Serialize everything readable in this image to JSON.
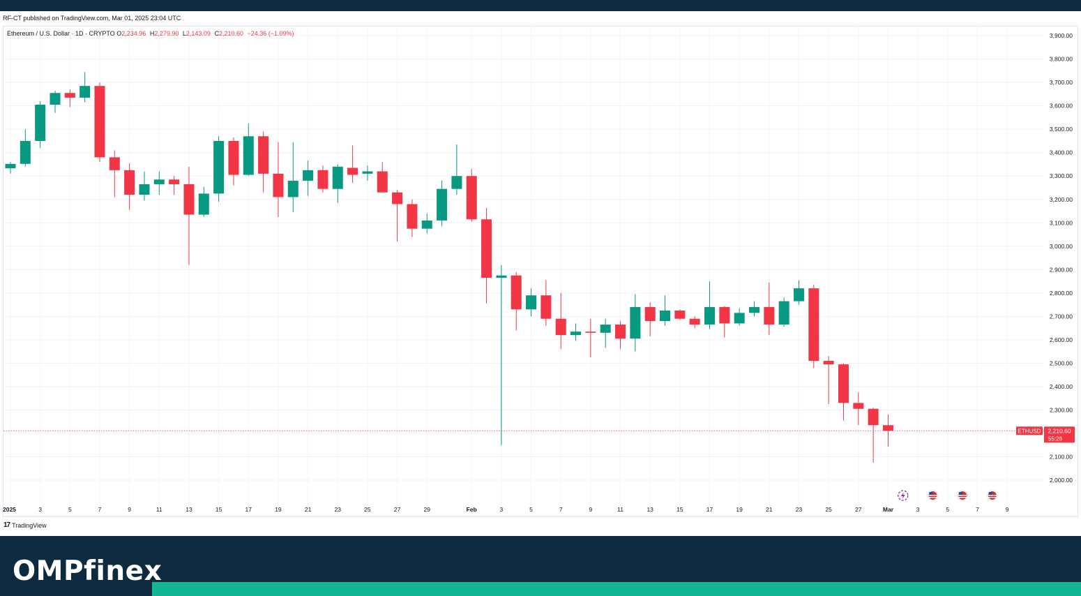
{
  "publisher_line": "RF-CT published on TradingView.com, Mar 01, 2025 23:04 UTC",
  "legend": {
    "symbol_line": "Ethereum / U.S. Dollar · 1D · CRYPTO",
    "open_label": "O",
    "open": "2,234.96",
    "high_label": "H",
    "high": "2,279.90",
    "low_label": "L",
    "low": "2,143.09",
    "close_label": "C",
    "close": "2,210.60",
    "change": "−24.36 (−1.09%)"
  },
  "tradingview_logo_text": "TradingView",
  "brand": "OMPfinex",
  "colors": {
    "up": "#089981",
    "down": "#f23645",
    "grid": "#f0f3fa",
    "axis_text": "#131722",
    "price_line": "#f23645"
  },
  "chart_data": {
    "type": "candlestick",
    "symbol": "ETHUSD",
    "interval": "1D",
    "x_tick_labels": [
      "2025",
      "3",
      "5",
      "7",
      "9",
      "11",
      "13",
      "15",
      "17",
      "19",
      "21",
      "23",
      "25",
      "27",
      "29",
      "Feb",
      "3",
      "5",
      "7",
      "9",
      "11",
      "13",
      "15",
      "17",
      "19",
      "21",
      "23",
      "25",
      "27",
      "Mar",
      "3",
      "5",
      "7",
      "9"
    ],
    "y_ticks": [
      2000,
      2100,
      2200,
      2300,
      2400,
      2500,
      2600,
      2700,
      2800,
      2900,
      3000,
      3100,
      3200,
      3300,
      3400,
      3500,
      3600,
      3700,
      3800,
      3900
    ],
    "ylim": [
      1970,
      3960
    ],
    "grid": true,
    "last_price_label": "ETHUSD",
    "last_price": "2,210.60",
    "countdown": "55:26",
    "event_markers": [
      {
        "date_index": 60,
        "icon": "lightning-icon"
      },
      {
        "date_index": 62,
        "icon": "us-flag-icon"
      },
      {
        "date_index": 64,
        "icon": "us-flag-icon"
      },
      {
        "date_index": 66,
        "icon": "us-flag-icon"
      }
    ],
    "candles": [
      {
        "d": "Jan 1",
        "o": 3333,
        "h": 3360,
        "l": 3310,
        "c": 3352
      },
      {
        "d": "Jan 2",
        "o": 3352,
        "h": 3500,
        "l": 3340,
        "c": 3450
      },
      {
        "d": "Jan 3",
        "o": 3450,
        "h": 3620,
        "l": 3420,
        "c": 3605
      },
      {
        "d": "Jan 4",
        "o": 3605,
        "h": 3665,
        "l": 3570,
        "c": 3655
      },
      {
        "d": "Jan 5",
        "o": 3655,
        "h": 3670,
        "l": 3595,
        "c": 3635
      },
      {
        "d": "Jan 6",
        "o": 3635,
        "h": 3745,
        "l": 3615,
        "c": 3685
      },
      {
        "d": "Jan 7",
        "o": 3685,
        "h": 3700,
        "l": 3360,
        "c": 3380
      },
      {
        "d": "Jan 8",
        "o": 3380,
        "h": 3410,
        "l": 3210,
        "c": 3325
      },
      {
        "d": "Jan 9",
        "o": 3325,
        "h": 3355,
        "l": 3155,
        "c": 3220
      },
      {
        "d": "Jan 10",
        "o": 3220,
        "h": 3320,
        "l": 3195,
        "c": 3265
      },
      {
        "d": "Jan 11",
        "o": 3265,
        "h": 3320,
        "l": 3220,
        "c": 3285
      },
      {
        "d": "Jan 12",
        "o": 3285,
        "h": 3300,
        "l": 3220,
        "c": 3265
      },
      {
        "d": "Jan 13",
        "o": 3265,
        "h": 3340,
        "l": 2920,
        "c": 3135
      },
      {
        "d": "Jan 14",
        "o": 3135,
        "h": 3255,
        "l": 3125,
        "c": 3225
      },
      {
        "d": "Jan 15",
        "o": 3225,
        "h": 3470,
        "l": 3190,
        "c": 3450
      },
      {
        "d": "Jan 16",
        "o": 3450,
        "h": 3465,
        "l": 3260,
        "c": 3305
      },
      {
        "d": "Jan 17",
        "o": 3305,
        "h": 3525,
        "l": 3300,
        "c": 3470
      },
      {
        "d": "Jan 18",
        "o": 3470,
        "h": 3490,
        "l": 3230,
        "c": 3310
      },
      {
        "d": "Jan 19",
        "o": 3310,
        "h": 3445,
        "l": 3125,
        "c": 3210
      },
      {
        "d": "Jan 20",
        "o": 3210,
        "h": 3445,
        "l": 3145,
        "c": 3280
      },
      {
        "d": "Jan 21",
        "o": 3280,
        "h": 3365,
        "l": 3215,
        "c": 3325
      },
      {
        "d": "Jan 22",
        "o": 3325,
        "h": 3345,
        "l": 3230,
        "c": 3245
      },
      {
        "d": "Jan 23",
        "o": 3245,
        "h": 3350,
        "l": 3185,
        "c": 3340
      },
      {
        "d": "Jan 24",
        "o": 3335,
        "h": 3430,
        "l": 3270,
        "c": 3305
      },
      {
        "d": "Jan 25",
        "o": 3310,
        "h": 3345,
        "l": 3280,
        "c": 3320
      },
      {
        "d": "Jan 26",
        "o": 3320,
        "h": 3360,
        "l": 3230,
        "c": 3230
      },
      {
        "d": "Jan 27",
        "o": 3230,
        "h": 3240,
        "l": 3020,
        "c": 3180
      },
      {
        "d": "Jan 28",
        "o": 3180,
        "h": 3200,
        "l": 3040,
        "c": 3075
      },
      {
        "d": "Jan 29",
        "o": 3075,
        "h": 3140,
        "l": 3055,
        "c": 3110
      },
      {
        "d": "Jan 30",
        "o": 3110,
        "h": 3280,
        "l": 3085,
        "c": 3245
      },
      {
        "d": "Jan 31",
        "o": 3245,
        "h": 3435,
        "l": 3220,
        "c": 3300
      },
      {
        "d": "Feb 1",
        "o": 3300,
        "h": 3330,
        "l": 3105,
        "c": 3115
      },
      {
        "d": "Feb 2",
        "o": 3115,
        "h": 3165,
        "l": 2755,
        "c": 2865
      },
      {
        "d": "Feb 3",
        "o": 2865,
        "h": 2920,
        "l": 2150,
        "c": 2875
      },
      {
        "d": "Feb 4",
        "o": 2875,
        "h": 2890,
        "l": 2640,
        "c": 2730
      },
      {
        "d": "Feb 5",
        "o": 2730,
        "h": 2820,
        "l": 2700,
        "c": 2790
      },
      {
        "d": "Feb 6",
        "o": 2790,
        "h": 2855,
        "l": 2660,
        "c": 2690
      },
      {
        "d": "Feb 7",
        "o": 2690,
        "h": 2800,
        "l": 2560,
        "c": 2620
      },
      {
        "d": "Feb 8",
        "o": 2620,
        "h": 2670,
        "l": 2595,
        "c": 2635
      },
      {
        "d": "Feb 9",
        "o": 2635,
        "h": 2690,
        "l": 2525,
        "c": 2630
      },
      {
        "d": "Feb 10",
        "o": 2630,
        "h": 2690,
        "l": 2565,
        "c": 2665
      },
      {
        "d": "Feb 11",
        "o": 2665,
        "h": 2680,
        "l": 2560,
        "c": 2605
      },
      {
        "d": "Feb 12",
        "o": 2605,
        "h": 2795,
        "l": 2550,
        "c": 2740
      },
      {
        "d": "Feb 13",
        "o": 2740,
        "h": 2760,
        "l": 2615,
        "c": 2680
      },
      {
        "d": "Feb 14",
        "o": 2680,
        "h": 2790,
        "l": 2660,
        "c": 2725
      },
      {
        "d": "Feb 15",
        "o": 2725,
        "h": 2730,
        "l": 2685,
        "c": 2690
      },
      {
        "d": "Feb 16",
        "o": 2690,
        "h": 2700,
        "l": 2650,
        "c": 2665
      },
      {
        "d": "Feb 17",
        "o": 2665,
        "h": 2850,
        "l": 2645,
        "c": 2740
      },
      {
        "d": "Feb 18",
        "o": 2740,
        "h": 2745,
        "l": 2610,
        "c": 2670
      },
      {
        "d": "Feb 19",
        "o": 2670,
        "h": 2735,
        "l": 2660,
        "c": 2715
      },
      {
        "d": "Feb 20",
        "o": 2715,
        "h": 2765,
        "l": 2700,
        "c": 2740
      },
      {
        "d": "Feb 21",
        "o": 2740,
        "h": 2845,
        "l": 2620,
        "c": 2665
      },
      {
        "d": "Feb 22",
        "o": 2665,
        "h": 2780,
        "l": 2655,
        "c": 2765
      },
      {
        "d": "Feb 23",
        "o": 2765,
        "h": 2855,
        "l": 2750,
        "c": 2820
      },
      {
        "d": "Feb 24",
        "o": 2820,
        "h": 2835,
        "l": 2480,
        "c": 2510
      },
      {
        "d": "Feb 25",
        "o": 2510,
        "h": 2530,
        "l": 2325,
        "c": 2495
      },
      {
        "d": "Feb 26",
        "o": 2495,
        "h": 2500,
        "l": 2255,
        "c": 2330
      },
      {
        "d": "Feb 27",
        "o": 2330,
        "h": 2375,
        "l": 2235,
        "c": 2305
      },
      {
        "d": "Feb 28",
        "o": 2305,
        "h": 2310,
        "l": 2075,
        "c": 2235
      },
      {
        "d": "Mar 1",
        "o": 2235,
        "h": 2280,
        "l": 2143,
        "c": 2211
      }
    ]
  }
}
